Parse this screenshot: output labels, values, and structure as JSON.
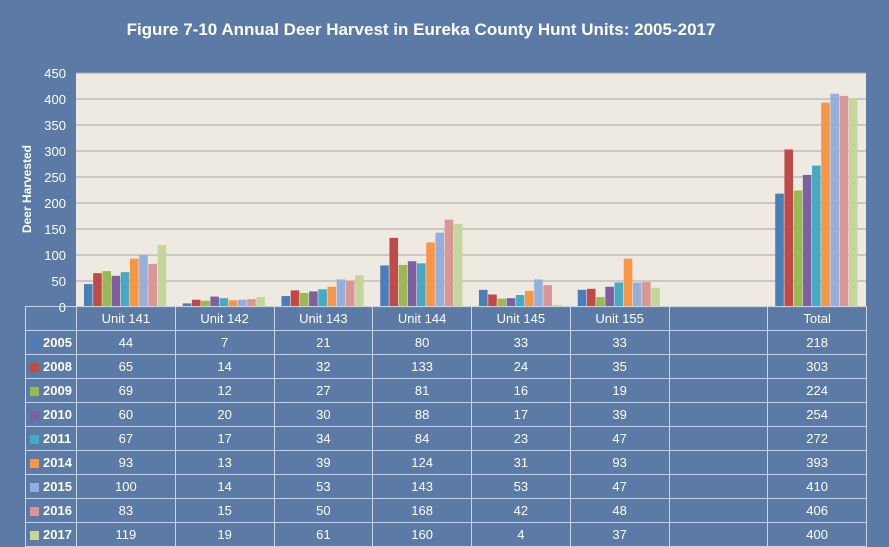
{
  "title": "Figure 7-10 Annual Deer Harvest in Eureka County Hunt Units: 2005-2017",
  "chart_data": {
    "type": "bar",
    "title": "Figure 7-10 Annual Deer Harvest in Eureka County Hunt Units: 2005-2017",
    "xlabel": "",
    "ylabel": "Deer Harvested",
    "ylim": [
      0,
      450
    ],
    "yticks": [
      0,
      50,
      100,
      150,
      200,
      250,
      300,
      350,
      400,
      450
    ],
    "grid": true,
    "categories": [
      "Unit 141",
      "Unit 142",
      "Unit 143",
      "Unit 144",
      "Unit 145",
      "Unit 155",
      "",
      "Total"
    ],
    "series": [
      {
        "name": "2005",
        "color": "#4a7ebb",
        "values": [
          44,
          7,
          21,
          80,
          33,
          33,
          null,
          218
        ]
      },
      {
        "name": "2008",
        "color": "#be4b48",
        "values": [
          65,
          14,
          32,
          133,
          24,
          35,
          null,
          303
        ]
      },
      {
        "name": "2009",
        "color": "#98b954",
        "values": [
          69,
          12,
          27,
          81,
          16,
          19,
          null,
          224
        ]
      },
      {
        "name": "2010",
        "color": "#7d60a0",
        "values": [
          60,
          20,
          30,
          88,
          17,
          39,
          null,
          254
        ]
      },
      {
        "name": "2011",
        "color": "#46aac5",
        "values": [
          67,
          17,
          34,
          84,
          23,
          47,
          null,
          272
        ]
      },
      {
        "name": "2014",
        "color": "#f79646",
        "values": [
          93,
          13,
          39,
          124,
          31,
          93,
          null,
          393
        ]
      },
      {
        "name": "2015",
        "color": "#94afdb",
        "values": [
          100,
          14,
          53,
          143,
          53,
          47,
          null,
          410
        ]
      },
      {
        "name": "2016",
        "color": "#d99694",
        "values": [
          83,
          15,
          50,
          168,
          42,
          48,
          null,
          406
        ]
      },
      {
        "name": "2017",
        "color": "#c3d69b",
        "values": [
          119,
          19,
          61,
          160,
          4,
          37,
          null,
          400
        ]
      }
    ]
  }
}
